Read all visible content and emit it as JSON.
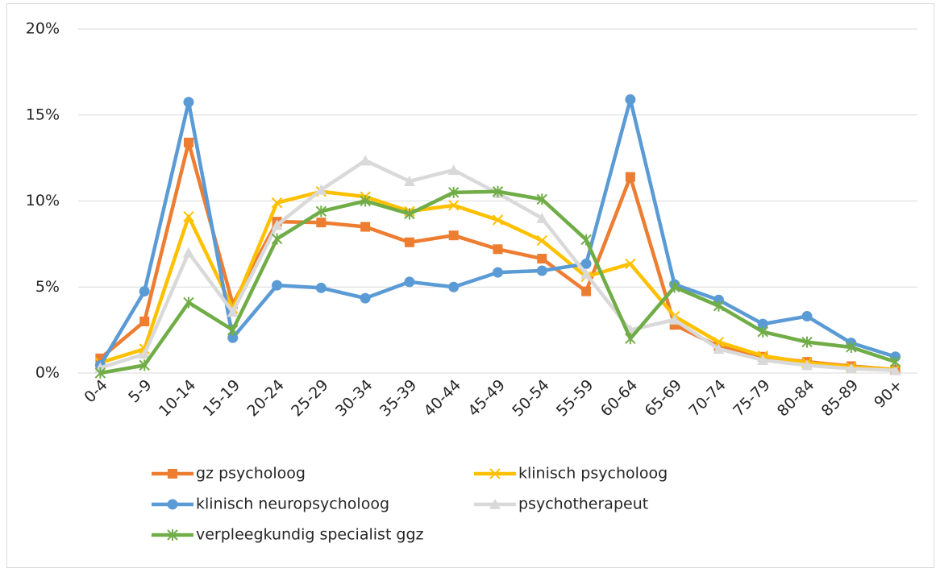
{
  "chart_data": {
    "type": "line",
    "categories": [
      "0-4",
      "5-9",
      "10-14",
      "15-19",
      "20-24",
      "25-29",
      "30-34",
      "35-39",
      "40-44",
      "45-49",
      "50-54",
      "55-59",
      "60-64",
      "65-69",
      "70-74",
      "75-79",
      "80-84",
      "85-89",
      "90+"
    ],
    "series": [
      {
        "name": "gz psycholoog",
        "color": "#ed7d31",
        "marker": "square",
        "values": [
          0.85,
          3.0,
          13.4,
          4.0,
          8.8,
          8.75,
          8.5,
          7.6,
          8.0,
          7.2,
          6.65,
          4.75,
          11.4,
          2.8,
          1.55,
          0.95,
          0.65,
          0.4,
          0.2
        ]
      },
      {
        "name": "klinisch psycholoog",
        "color": "#ffc000",
        "marker": "x",
        "values": [
          0.6,
          1.4,
          9.1,
          3.75,
          9.9,
          10.55,
          10.25,
          9.4,
          9.75,
          8.9,
          7.7,
          5.6,
          6.35,
          3.3,
          1.8,
          1.0,
          0.6,
          0.35,
          0.2
        ]
      },
      {
        "name": "klinisch neuropsycholoog",
        "color": "#5b9bd5",
        "marker": "circle",
        "values": [
          0.45,
          4.75,
          15.75,
          2.05,
          5.1,
          4.95,
          4.35,
          5.3,
          5.0,
          5.85,
          5.95,
          6.35,
          15.9,
          5.15,
          4.25,
          2.85,
          3.3,
          1.75,
          0.95
        ]
      },
      {
        "name": "psychotherapeut",
        "color": "#d9d9d9",
        "marker": "triangle",
        "values": [
          0.3,
          1.1,
          7.0,
          3.55,
          8.6,
          10.65,
          12.35,
          11.15,
          11.8,
          10.45,
          9.0,
          5.75,
          2.5,
          3.1,
          1.4,
          0.75,
          0.45,
          0.25,
          0.15
        ]
      },
      {
        "name": "verpleegkundig specialist ggz",
        "color": "#70ad47",
        "marker": "asterisk",
        "values": [
          0.0,
          0.45,
          4.1,
          2.5,
          7.8,
          9.4,
          10.0,
          9.25,
          10.5,
          10.55,
          10.1,
          7.75,
          2.0,
          5.0,
          3.9,
          2.4,
          1.8,
          1.5,
          0.65
        ]
      }
    ],
    "ylim": [
      0,
      20
    ],
    "yticks": [
      {
        "value": 0,
        "label": "0%"
      },
      {
        "value": 5,
        "label": "5%"
      },
      {
        "value": 10,
        "label": "10%"
      },
      {
        "value": 15,
        "label": "15%"
      },
      {
        "value": 20,
        "label": "20%"
      }
    ],
    "grid": true,
    "legend": "bottom"
  }
}
